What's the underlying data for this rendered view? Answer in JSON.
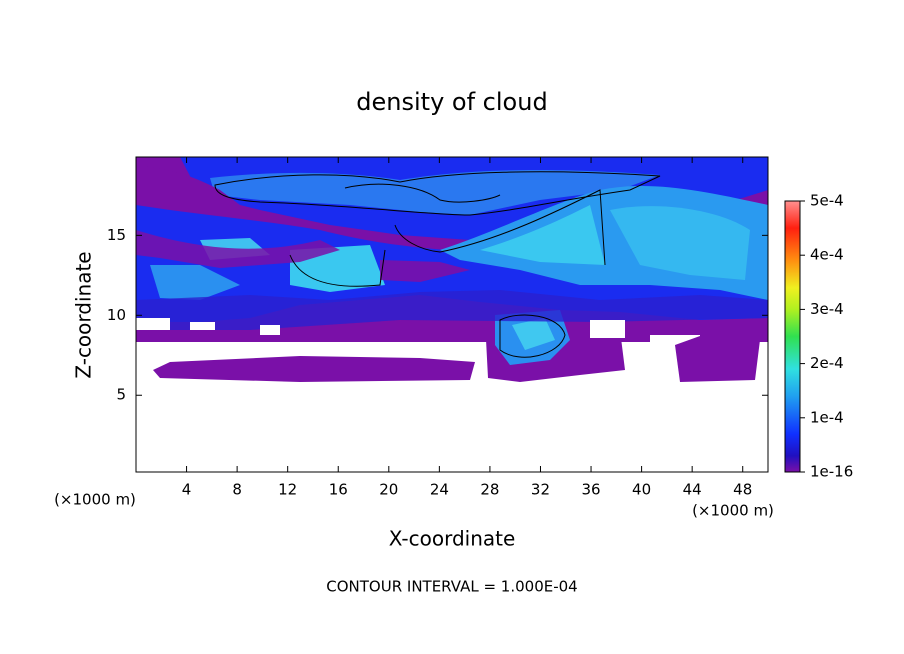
{
  "chart_data": {
    "type": "contour",
    "title": "density of cloud",
    "xlabel": "X-coordinate",
    "ylabel": "Z-coordinate",
    "x_unit_left": "(×1000 m)",
    "x_unit_right": "(×1000 m)",
    "annotation": "CONTOUR INTERVAL = 1.000E-04",
    "xlim": [
      0,
      50
    ],
    "xticks": [
      4,
      8,
      12,
      16,
      20,
      24,
      28,
      32,
      36,
      40,
      44,
      48
    ],
    "ylim": [
      0.2,
      19.9
    ],
    "yticks": [
      5,
      10,
      15
    ],
    "clim": [
      1e-16,
      0.0005
    ],
    "cticks": [
      {
        "value": 1e-16,
        "label": "1e-16"
      },
      {
        "value": 0.0001,
        "label": "1e-4"
      },
      {
        "value": 0.0002,
        "label": "2e-4"
      },
      {
        "value": 0.0003,
        "label": "3e-4"
      },
      {
        "value": 0.0004,
        "label": "4e-4"
      },
      {
        "value": 0.0005,
        "label": "5e-4"
      }
    ]
  }
}
